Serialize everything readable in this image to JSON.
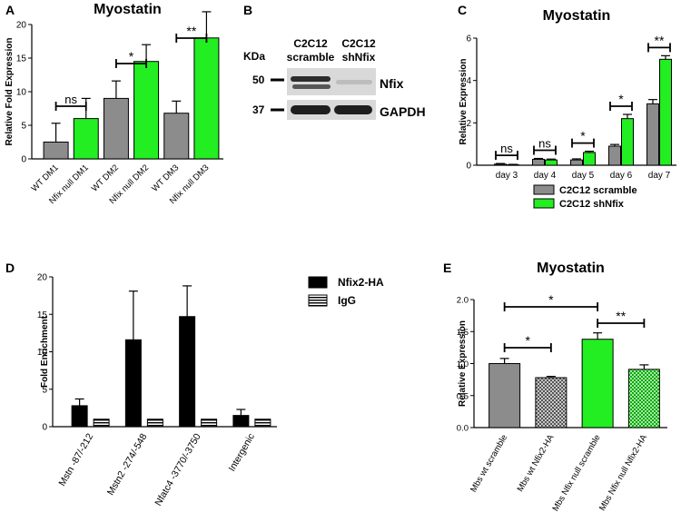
{
  "figure": {
    "panels": [
      {
        "id": "A",
        "kind": "chart",
        "letter": "A"
      },
      {
        "id": "B",
        "kind": "western-blot",
        "letter": "B"
      },
      {
        "id": "C",
        "kind": "chart",
        "letter": "C"
      },
      {
        "id": "D",
        "kind": "chart",
        "letter": "D"
      },
      {
        "id": "E",
        "kind": "chart",
        "letter": "E"
      }
    ]
  },
  "colors": {
    "gray": "#8c8c8c",
    "green": "#22ee22",
    "black": "#000000"
  },
  "blot": {
    "kda_label": "KDa",
    "lanes": [
      {
        "line1": "C2C12",
        "line2": "scramble"
      },
      {
        "line1": "C2C12",
        "line2": "shNfix"
      }
    ],
    "bands": [
      {
        "marker": "50",
        "protein": "Nfix"
      },
      {
        "marker": "37",
        "protein": "GAPDH"
      }
    ]
  },
  "chart_data": [
    {
      "panel": "A",
      "type": "bar",
      "title": "Myostatin",
      "ylabel": "Relative Fold Expression",
      "xlabel": "",
      "categories": [
        "WT DM1",
        "Nfix null DM1",
        "WT DM2",
        "Nfix null DM2",
        "WT DM3",
        "Nfix null DM3"
      ],
      "values": [
        2.5,
        6.0,
        9.0,
        14.5,
        6.8,
        18.0
      ],
      "errors": [
        2.8,
        3.0,
        2.6,
        2.5,
        1.8,
        3.9
      ],
      "bar_colors": [
        "gray",
        "green",
        "gray",
        "green",
        "gray",
        "green"
      ],
      "ylim": [
        0,
        20
      ],
      "yticks": [
        0,
        5,
        10,
        15,
        20
      ],
      "grid": false,
      "significance": [
        {
          "pair": [
            0,
            1
          ],
          "label": "ns"
        },
        {
          "pair": [
            2,
            3
          ],
          "label": "*"
        },
        {
          "pair": [
            4,
            5
          ],
          "label": "**"
        }
      ]
    },
    {
      "panel": "C",
      "type": "bar",
      "title": "Myostatin",
      "ylabel": "Relative Expression",
      "xlabel": "",
      "categories": [
        "day 3",
        "day 4",
        "day 5",
        "day 6",
        "day 7"
      ],
      "series": [
        {
          "name": "C2C12 scramble",
          "color": "gray",
          "values": [
            0.05,
            0.28,
            0.25,
            0.9,
            2.9
          ],
          "errors": [
            0.03,
            0.04,
            0.05,
            0.08,
            0.2
          ]
        },
        {
          "name": "C2C12 shNfix",
          "color": "green",
          "values": [
            0.02,
            0.25,
            0.6,
            2.2,
            5.0
          ],
          "errors": [
            0.02,
            0.04,
            0.06,
            0.2,
            0.17
          ]
        }
      ],
      "ylim": [
        0,
        6
      ],
      "yticks": [
        0,
        2,
        4,
        6
      ],
      "grid": false,
      "legend_position": "bottom",
      "significance": [
        {
          "group": 0,
          "label": "ns"
        },
        {
          "group": 1,
          "label": "ns"
        },
        {
          "group": 2,
          "label": "*"
        },
        {
          "group": 3,
          "label": "*"
        },
        {
          "group": 4,
          "label": "**"
        }
      ]
    },
    {
      "panel": "D",
      "type": "bar",
      "title": "",
      "ylabel": "Fold Enrichment",
      "xlabel": "",
      "categories": [
        "Mstn -87/-212",
        "Mstn2 -274/-548",
        "Nfatc4 -3770/-3750",
        "Intergenic"
      ],
      "series": [
        {
          "name": "Nfix2-HA",
          "color": "black",
          "pattern": "solid",
          "values": [
            2.8,
            11.6,
            14.7,
            1.5
          ],
          "errors": [
            0.9,
            6.5,
            4.1,
            0.8
          ]
        },
        {
          "name": "IgG",
          "color": "black",
          "pattern": "horizontal-stripes",
          "values": [
            1.0,
            1.0,
            1.0,
            1.0
          ],
          "errors": [
            0,
            0,
            0,
            0
          ]
        }
      ],
      "ylim": [
        0,
        20
      ],
      "yticks": [
        0,
        5,
        10,
        15,
        20
      ],
      "grid": false,
      "legend_position": "top-right"
    },
    {
      "panel": "E",
      "type": "bar",
      "title": "Myostatin",
      "ylabel": "Relative Expression",
      "xlabel": "",
      "categories": [
        "Mbs wt scramble",
        "Mbs wt Nfix2-HA",
        "Mbs Nfix null scramble",
        "Mbs Nfix null Nfix2-HA"
      ],
      "values": [
        1.0,
        0.78,
        1.38,
        0.91
      ],
      "errors": [
        0.08,
        0.02,
        0.1,
        0.07
      ],
      "bar_colors": [
        "gray",
        "gray",
        "green",
        "green"
      ],
      "bar_patterns": [
        "solid",
        "checker",
        "solid",
        "checker"
      ],
      "ylim": [
        0,
        2.0
      ],
      "yticks": [
        "0.0",
        "0.5",
        "1.0",
        "1.5",
        "2.0"
      ],
      "grid": false,
      "significance": [
        {
          "pair": [
            0,
            1
          ],
          "label": "*"
        },
        {
          "pair": [
            0,
            2
          ],
          "label": "*"
        },
        {
          "pair": [
            2,
            3
          ],
          "label": "**"
        }
      ]
    }
  ]
}
